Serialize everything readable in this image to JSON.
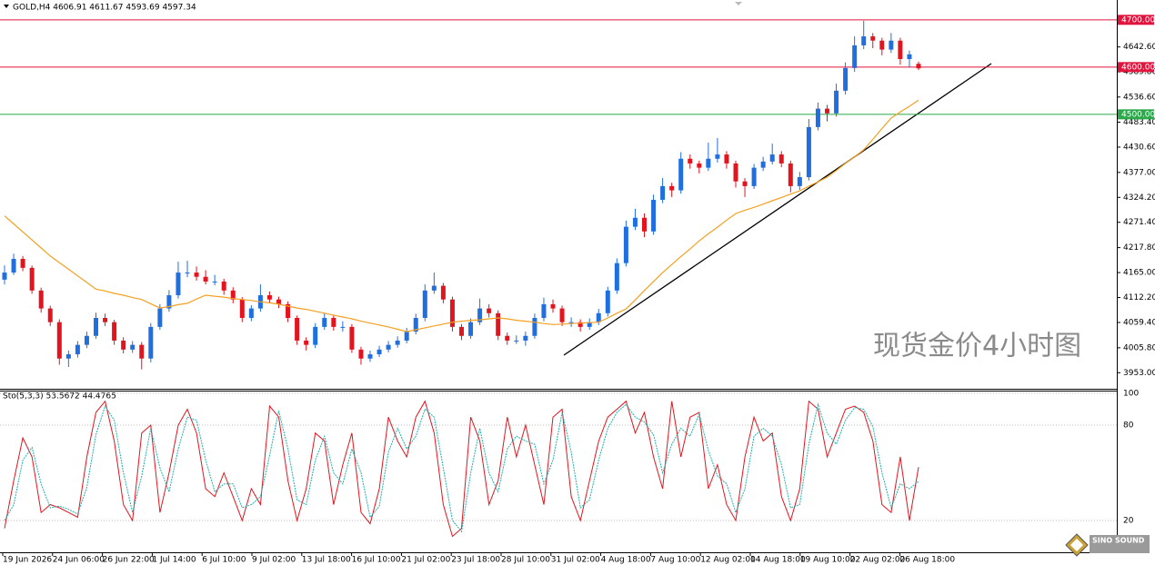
{
  "chart_data": [
    {
      "type": "candlestick",
      "header": "GOLD,H4  4606.91 4611.67 4593.69 4597.34",
      "watermark": "现货金价4小时图",
      "bull_color": "#1f6fe0",
      "bear_color": "#e3141e",
      "ylim": [
        3919,
        4742
      ],
      "yticks": [
        {
          "value": 4642.6,
          "label": "4642.60"
        },
        {
          "value": 4589.8,
          "label": "4589.80"
        },
        {
          "value": 4536.6,
          "label": "4536.60"
        },
        {
          "value": 4483.4,
          "label": "4483.40"
        },
        {
          "value": 4430.6,
          "label": "4430.60"
        },
        {
          "value": 4377,
          "label": "4377.00"
        },
        {
          "value": 4324.2,
          "label": "4324.20"
        },
        {
          "value": 4271.4,
          "label": "4271.40"
        },
        {
          "value": 4217.8,
          "label": "4217.80"
        },
        {
          "value": 4165,
          "label": "4165.00"
        },
        {
          "value": 4112.2,
          "label": "4112.20"
        },
        {
          "value": 4059.4,
          "label": "4059.40"
        },
        {
          "value": 4005.8,
          "label": "4005.80"
        },
        {
          "value": 3953,
          "label": "3953.00"
        }
      ],
      "levels": [
        {
          "value": 4700,
          "label": "4700.00",
          "color": "#e0143c"
        },
        {
          "value": 4600,
          "label": "4600.00",
          "color": "#e0143c"
        },
        {
          "value": 4500,
          "label": "4500.00",
          "color": "#2aa84a"
        }
      ],
      "x_labels": [
        "19 Jun 2026",
        "24 Jun 06:00",
        "26 Jun 22:00",
        "1 Jul 14:00",
        "6 Jul 10:00",
        "9 Jul 02:00",
        "13 Jul 18:00",
        "16 Jul 10:00",
        "21 Jul 02:00",
        "23 Jul 18:00",
        "28 Jul 10:00",
        "31 Jul 02:00",
        "4 Aug 18:00",
        "7 Aug 10:00",
        "12 Aug 02:00",
        "14 Aug 18:00",
        "19 Aug 10:00",
        "22 Aug 02:00",
        "26 Aug 18:00"
      ],
      "candles": [
        [
          4150,
          4180,
          4140,
          4165
        ],
        [
          4165,
          4205,
          4160,
          4194
        ],
        [
          4194,
          4200,
          4168,
          4175
        ],
        [
          4175,
          4180,
          4120,
          4127
        ],
        [
          4127,
          4133,
          4080,
          4089
        ],
        [
          4089,
          4095,
          4052,
          4060
        ],
        [
          4060,
          4066,
          3970,
          3983
        ],
        [
          3983,
          4000,
          3965,
          3992
        ],
        [
          3992,
          4020,
          3985,
          4012
        ],
        [
          4012,
          4040,
          4005,
          4031
        ],
        [
          4031,
          4080,
          4025,
          4069
        ],
        [
          4069,
          4078,
          4052,
          4060
        ],
        [
          4060,
          4065,
          4012,
          4021
        ],
        [
          4021,
          4028,
          3994,
          4002
        ],
        [
          4002,
          4020,
          3995,
          4012
        ],
        [
          4012,
          4018,
          3960,
          3983
        ],
        [
          3983,
          4058,
          3975,
          4050
        ],
        [
          4050,
          4098,
          4044,
          4089
        ],
        [
          4089,
          4128,
          4082,
          4117
        ],
        [
          4117,
          4188,
          4110,
          4165
        ],
        [
          4165,
          4190,
          4155,
          4165
        ],
        [
          4165,
          4178,
          4148,
          4156
        ],
        [
          4156,
          4170,
          4140,
          4146
        ],
        [
          4146,
          4160,
          4138,
          4146
        ],
        [
          4146,
          4152,
          4118,
          4127
        ],
        [
          4127,
          4134,
          4100,
          4108
        ],
        [
          4108,
          4113,
          4060,
          4069
        ],
        [
          4069,
          4096,
          4062,
          4089
        ],
        [
          4089,
          4140,
          4082,
          4117
        ],
        [
          4117,
          4125,
          4100,
          4108
        ],
        [
          4108,
          4114,
          4090,
          4098
        ],
        [
          4098,
          4104,
          4060,
          4069
        ],
        [
          4069,
          4074,
          4012,
          4021
        ],
        [
          4021,
          4028,
          4000,
          4012
        ],
        [
          4012,
          4058,
          4005,
          4050
        ],
        [
          4050,
          4080,
          4044,
          4069
        ],
        [
          4069,
          4075,
          4042,
          4050
        ],
        [
          4050,
          4062,
          4040,
          4050
        ],
        [
          4050,
          4056,
          3995,
          4002
        ],
        [
          4002,
          4008,
          3970,
          3983
        ],
        [
          3983,
          4000,
          3976,
          3992
        ],
        [
          3992,
          4010,
          3986,
          4002
        ],
        [
          4002,
          4020,
          3996,
          4012
        ],
        [
          4012,
          4030,
          4006,
          4021
        ],
        [
          4021,
          4048,
          4015,
          4040
        ],
        [
          4040,
          4078,
          4034,
          4069
        ],
        [
          4069,
          4140,
          4062,
          4127
        ],
        [
          4127,
          4165,
          4120,
          4137
        ],
        [
          4137,
          4143,
          4100,
          4108
        ],
        [
          4108,
          4114,
          4040,
          4050
        ],
        [
          4050,
          4056,
          4022,
          4031
        ],
        [
          4031,
          4068,
          4025,
          4060
        ],
        [
          4060,
          4110,
          4054,
          4089
        ],
        [
          4089,
          4098,
          4070,
          4079
        ],
        [
          4079,
          4085,
          4022,
          4031
        ],
        [
          4031,
          4038,
          4012,
          4021
        ],
        [
          4021,
          4032,
          4014,
          4021
        ],
        [
          4021,
          4040,
          4010,
          4031
        ],
        [
          4031,
          4078,
          4025,
          4069
        ],
        [
          4069,
          4112,
          4062,
          4098
        ],
        [
          4098,
          4108,
          4080,
          4089
        ],
        [
          4089,
          4095,
          4052,
          4060
        ],
        [
          4060,
          4070,
          4050,
          4060
        ],
        [
          4060,
          4066,
          4040,
          4050
        ],
        [
          4050,
          4068,
          4044,
          4060
        ],
        [
          4060,
          4088,
          4054,
          4079
        ],
        [
          4079,
          4135,
          4072,
          4127
        ],
        [
          4127,
          4195,
          4120,
          4185
        ],
        [
          4185,
          4275,
          4178,
          4262
        ],
        [
          4262,
          4300,
          4255,
          4281
        ],
        [
          4281,
          4290,
          4240,
          4252
        ],
        [
          4252,
          4330,
          4245,
          4319
        ],
        [
          4319,
          4365,
          4312,
          4348
        ],
        [
          4348,
          4355,
          4325,
          4339
        ],
        [
          4339,
          4420,
          4332,
          4406
        ],
        [
          4406,
          4415,
          4385,
          4396
        ],
        [
          4396,
          4402,
          4375,
          4387
        ],
        [
          4387,
          4440,
          4380,
          4406
        ],
        [
          4406,
          4450,
          4398,
          4415
        ],
        [
          4415,
          4422,
          4385,
          4396
        ],
        [
          4396,
          4402,
          4345,
          4358
        ],
        [
          4358,
          4365,
          4325,
          4348
        ],
        [
          4348,
          4395,
          4342,
          4387
        ],
        [
          4387,
          4410,
          4380,
          4400
        ],
        [
          4400,
          4438,
          4394,
          4415
        ],
        [
          4415,
          4422,
          4388,
          4396
        ],
        [
          4396,
          4402,
          4335,
          4348
        ],
        [
          4348,
          4378,
          4340,
          4367
        ],
        [
          4367,
          4490,
          4360,
          4473
        ],
        [
          4473,
          4525,
          4466,
          4512
        ],
        [
          4512,
          4520,
          4485,
          4502
        ],
        [
          4502,
          4565,
          4495,
          4550
        ],
        [
          4550,
          4610,
          4542,
          4598
        ],
        [
          4598,
          4665,
          4590,
          4646
        ],
        [
          4646,
          4698,
          4638,
          4665
        ],
        [
          4665,
          4672,
          4640,
          4656
        ],
        [
          4656,
          4662,
          4625,
          4637
        ],
        [
          4637,
          4672,
          4630,
          4656
        ],
        [
          4656,
          4662,
          4605,
          4617
        ],
        [
          4617,
          4635,
          4600,
          4627
        ],
        [
          4606.91,
          4611.67,
          4593.69,
          4597.34
        ]
      ],
      "ma": {
        "color": "#f5a020",
        "values": [
          4285,
          4268,
          4251,
          4234,
          4217,
          4200,
          4186,
          4172,
          4158,
          4144,
          4130,
          4126,
          4121,
          4117,
          4112,
          4108,
          4099,
          4090,
          4093,
          4097,
          4100,
          4109,
          4117,
          4115,
          4113,
          4110,
          4108,
          4106,
          4103,
          4101,
          4098,
          4094,
          4090,
          4087,
          4083,
          4079,
          4075,
          4071,
          4067,
          4062,
          4058,
          4054,
          4050,
          4045,
          4040,
          4044,
          4048,
          4052,
          4056,
          4060,
          4062,
          4064,
          4065,
          4067,
          4069,
          4067,
          4064,
          4062,
          4060,
          4057,
          4055,
          4056,
          4057,
          4058,
          4059,
          4060,
          4069,
          4079,
          4088,
          4107,
          4127,
          4146,
          4165,
          4182,
          4199,
          4215,
          4232,
          4247,
          4261,
          4276,
          4290,
          4297,
          4303,
          4310,
          4317,
          4324,
          4331,
          4338,
          4348,
          4357,
          4367,
          4381,
          4396,
          4410,
          4425,
          4447,
          4470,
          4492,
          4505,
          4517,
          4530
        ]
      }
    },
    {
      "type": "line",
      "title": "Sto(5,3,3) 53.5672 44.4765",
      "ylim": [
        0,
        101.7
      ],
      "yticks": [
        100,
        80,
        20
      ],
      "grid": true,
      "series": [
        {
          "color": "#e3141e",
          "values": [
            15,
            45,
            72,
            60,
            25,
            30,
            28,
            25,
            22,
            60,
            88,
            95,
            70,
            30,
            20,
            75,
            80,
            25,
            50,
            80,
            90,
            75,
            40,
            35,
            50,
            35,
            20,
            40,
            30,
            92,
            85,
            45,
            20,
            40,
            75,
            70,
            30,
            55,
            75,
            25,
            18,
            40,
            85,
            70,
            60,
            85,
            95,
            75,
            30,
            10,
            15,
            85,
            70,
            30,
            45,
            85,
            60,
            80,
            55,
            30,
            85,
            90,
            35,
            20,
            45,
            70,
            85,
            90,
            95,
            75,
            88,
            60,
            40,
            95,
            60,
            85,
            88,
            40,
            55,
            30,
            20,
            60,
            85,
            70,
            75,
            35,
            20,
            40,
            95,
            90,
            60,
            75,
            90,
            92,
            88,
            70,
            30,
            25,
            60,
            20,
            53.5672
          ]
        },
        {
          "color": "#20b0b0",
          "values": [
            20,
            30,
            58,
            66,
            43,
            28,
            29,
            27,
            24,
            41,
            74,
            92,
            83,
            50,
            25,
            48,
            78,
            53,
            38,
            65,
            85,
            83,
            58,
            38,
            43,
            43,
            28,
            30,
            35,
            61,
            89,
            65,
            33,
            30,
            58,
            73,
            50,
            43,
            65,
            50,
            22,
            29,
            63,
            78,
            65,
            73,
            90,
            85,
            53,
            20,
            13,
            50,
            78,
            50,
            38,
            65,
            73,
            70,
            68,
            43,
            58,
            88,
            63,
            28,
            33,
            58,
            78,
            88,
            93,
            85,
            82,
            74,
            50,
            68,
            78,
            73,
            87,
            64,
            48,
            43,
            25,
            40,
            73,
            78,
            73,
            55,
            28,
            30,
            68,
            93,
            75,
            68,
            83,
            91,
            90,
            79,
            50,
            28,
            43,
            40,
            44.4765
          ]
        }
      ]
    }
  ],
  "logo": "SINO SOUND"
}
